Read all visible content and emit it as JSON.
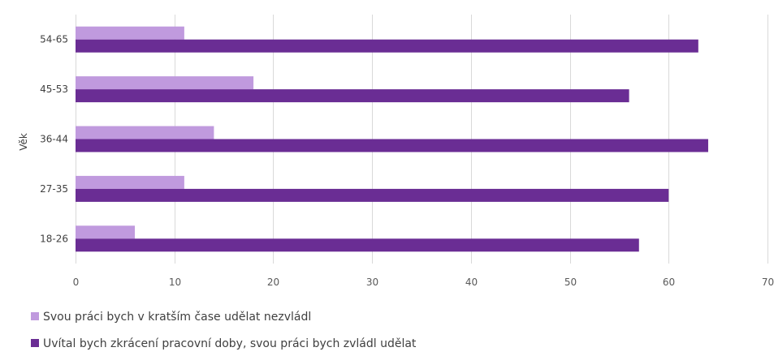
{
  "chart_data": {
    "type": "bar",
    "orientation": "horizontal",
    "categories": [
      "54-65",
      "45-53",
      "36-44",
      "27-35",
      "18-26"
    ],
    "ylabel": "Věk",
    "xlim": [
      0,
      70
    ],
    "xticks": [
      0,
      10,
      20,
      30,
      40,
      50,
      60,
      70
    ],
    "grid": true,
    "legend_position": "bottom-left",
    "series": [
      {
        "name": "Svou práci bych v kratším čase udělat nezvládl",
        "color": "#c09ade",
        "values": [
          11,
          18,
          14,
          11,
          6
        ]
      },
      {
        "name": "Uvítal bych zkrácení pracovní doby, svou práci bych zvládl udělat",
        "color": "#6a2d94",
        "values": [
          63,
          56,
          64,
          60,
          57
        ]
      }
    ]
  }
}
